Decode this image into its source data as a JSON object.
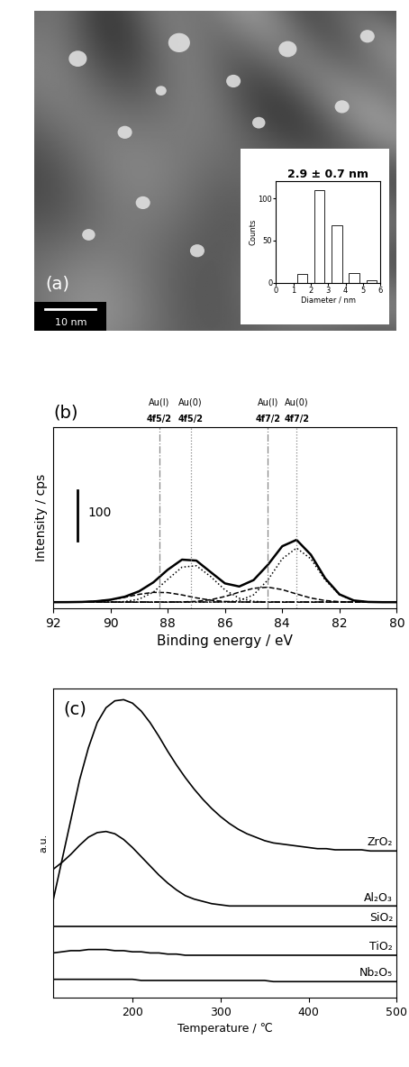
{
  "chart_data": [
    {
      "type": "image",
      "panel_label": "(a)",
      "scale_bar": "10 nm"
    },
    {
      "type": "bar",
      "title": "2.9 ± 0.7 nm",
      "x_label": "Diameter / nm",
      "y_label": "Counts",
      "x": [
        1.5,
        2.5,
        3.5,
        4.5,
        5.5
      ],
      "values": [
        10,
        110,
        68,
        12,
        3
      ],
      "color": "#ffffff",
      "xlim": [
        0,
        6
      ],
      "xticks": [
        0,
        1,
        2,
        3,
        4,
        5,
        6
      ],
      "ylim": [
        0,
        120
      ],
      "yticks": [
        0,
        50,
        100
      ]
    },
    {
      "type": "line",
      "panel_label": "(b)",
      "x_label": "Binding energy / eV",
      "y_label": "Intensity / cps",
      "tick_labels": "x",
      "scale_bar": 100,
      "xlim": [
        92,
        80
      ],
      "xticks": [
        92,
        90,
        88,
        86,
        84,
        82,
        80
      ],
      "ylim": [
        -12,
        350
      ],
      "x": [
        80,
        80.5,
        81,
        81.5,
        82,
        82.5,
        83,
        83.5,
        84,
        84.5,
        85,
        85.5,
        86,
        86.5,
        87,
        87.5,
        88,
        88.5,
        89,
        89.5,
        90,
        90.5,
        91,
        91.5,
        92
      ],
      "series": [
        {
          "color": "#000000",
          "line_style": "solid",
          "values": [
            0,
            0,
            0.5,
            3.4,
            15.6,
            47.7,
            94.8,
            124.4,
            111.6,
            74.6,
            44.1,
            31.3,
            37.5,
            60.1,
            83,
            84.9,
            64.7,
            39.6,
            21.7,
            10.9,
            4.9,
            1.8,
            0.5,
            0.1,
            0
          ]
        },
        {
          "color": "#000000",
          "line_style": "dotted",
          "values": [
            0,
            0,
            0.4,
            3.1,
            14.6,
            44.4,
            86.5,
            108,
            86.5,
            44.4,
            14.6,
            3.1,
            0.4,
            0,
            0,
            0,
            0,
            0,
            0,
            0,
            0,
            0,
            0,
            0,
            0
          ]
        },
        {
          "color": "#000000",
          "line_style": "dotted",
          "values": [
            0,
            0,
            0,
            0,
            0,
            0,
            0,
            0,
            0,
            0.3,
            1.7,
            7.8,
            24.4,
            51.2,
            72.7,
            69.9,
            45.5,
            20.0,
            6.0,
            1.2,
            0.2,
            0,
            0,
            0,
            0
          ]
        },
        {
          "color": "#000000",
          "line_style": "dashed",
          "values": [
            0,
            0,
            0.1,
            0.3,
            1.0,
            3.3,
            8.3,
            16.4,
            25.1,
            29.9,
            27.7,
            20.0,
            11.3,
            4.9,
            1.7,
            0.5,
            0.1,
            0,
            0,
            0,
            0,
            0,
            0,
            0,
            0
          ]
        },
        {
          "color": "#000000",
          "line_style": "dashed",
          "values": [
            0,
            0,
            0,
            0,
            0,
            0,
            0,
            0,
            0,
            0,
            0.1,
            0.4,
            1.4,
            4.0,
            8.6,
            14.5,
            19.1,
            19.6,
            15.7,
            9.7,
            4.7,
            1.8,
            0.5,
            0.1,
            0
          ]
        },
        {
          "color": "#000000",
          "line_style": "dashdot",
          "values": [
            0,
            0,
            0,
            0,
            0,
            0,
            0,
            0,
            0,
            0,
            0,
            0,
            0,
            0,
            0,
            0,
            0,
            0,
            0,
            0,
            0,
            0,
            0,
            0,
            0
          ]
        }
      ],
      "reference_lines": [
        {
          "value": 88.3,
          "label": "Au(I)",
          "sublabel": "4f5/2",
          "line_style": "dashdot",
          "color": "#888888"
        },
        {
          "value": 87.2,
          "label": "Au(0)",
          "sublabel": "4f5/2",
          "line_style": "dotted",
          "color": "#888888"
        },
        {
          "value": 84.5,
          "label": "Au(I)",
          "sublabel": "4f7/2",
          "line_style": "dashdot",
          "color": "#888888"
        },
        {
          "value": 83.5,
          "label": "Au(0)",
          "sublabel": "4f7/2",
          "line_style": "dotted",
          "color": "#888888"
        }
      ]
    },
    {
      "type": "line",
      "panel_label": "(c)",
      "x_label": "Temperature / ℃",
      "y_label": "a.u.",
      "tick_labels": "x",
      "xlim": [
        110,
        500
      ],
      "xticks": [
        200,
        300,
        400,
        500
      ],
      "ylim": [
        0,
        270
      ],
      "x": [
        110,
        120,
        130,
        140,
        150,
        160,
        170,
        180,
        190,
        200,
        210,
        220,
        230,
        240,
        250,
        260,
        270,
        280,
        290,
        300,
        310,
        320,
        330,
        340,
        350,
        360,
        370,
        380,
        390,
        400,
        410,
        420,
        430,
        440,
        450,
        460,
        470,
        480,
        490,
        500
      ],
      "series": [
        {
          "name": "ZrO₂",
          "color": "#000000",
          "values": [
            85,
            120,
            155,
            190,
            218,
            240,
            253,
            259,
            260,
            257,
            250,
            240,
            228,
            215,
            203,
            192,
            182,
            173,
            165,
            158,
            152,
            147,
            143,
            140,
            137,
            135,
            134,
            133,
            132,
            131,
            130,
            130,
            129,
            129,
            129,
            129,
            128,
            128,
            128,
            128
          ]
        },
        {
          "name": "Al₂O₃",
          "color": "#000000",
          "values": [
            112,
            118,
            125,
            133,
            140,
            144,
            145,
            143,
            138,
            131,
            123,
            115,
            107,
            100,
            94,
            89,
            86,
            84,
            82,
            81,
            80,
            80,
            80,
            80,
            80,
            80,
            80,
            80,
            80,
            80,
            80,
            80,
            80,
            80,
            80,
            80,
            80,
            80,
            80,
            80
          ]
        },
        {
          "name": "SiO₂",
          "color": "#000000",
          "values": [
            62,
            62,
            62,
            62,
            62,
            62,
            62,
            62,
            62,
            62,
            62,
            62,
            62,
            62,
            62,
            62,
            62,
            62,
            62,
            62,
            62,
            62,
            62,
            62,
            62,
            62,
            62,
            62,
            62,
            62,
            62,
            62,
            62,
            62,
            62,
            62,
            62,
            62,
            62,
            62
          ]
        },
        {
          "name": "TiO₂",
          "color": "#000000",
          "values": [
            39,
            40,
            41,
            41,
            42,
            42,
            42,
            41,
            41,
            40,
            40,
            39,
            39,
            38,
            38,
            37,
            37,
            37,
            37,
            37,
            37,
            37,
            37,
            37,
            37,
            37,
            37,
            37,
            37,
            37,
            37,
            37,
            37,
            37,
            37,
            37,
            37,
            37,
            37,
            37
          ]
        },
        {
          "name": "Nb₂O₅",
          "color": "#000000",
          "values": [
            16,
            16,
            16,
            16,
            16,
            16,
            16,
            16,
            16,
            16,
            15,
            15,
            15,
            15,
            15,
            15,
            15,
            15,
            15,
            15,
            15,
            15,
            15,
            15,
            15,
            14,
            14,
            14,
            14,
            14,
            14,
            14,
            14,
            14,
            14,
            14,
            14,
            14,
            14,
            14
          ]
        }
      ]
    }
  ]
}
